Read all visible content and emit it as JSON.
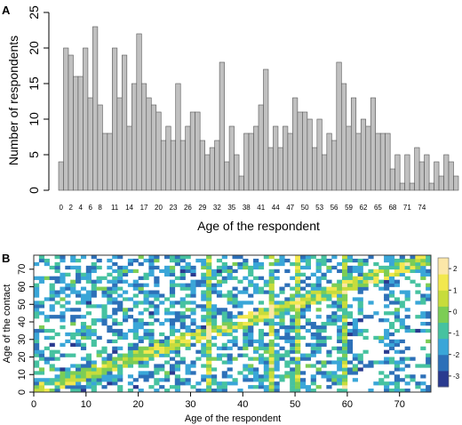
{
  "chart_data": [
    {
      "type": "bar",
      "panel_label": "A",
      "xlabel": "Age of the respondent",
      "ylabel": "Number of respondents",
      "x_start": 0,
      "values": [
        4,
        20,
        19,
        16,
        16,
        20,
        13,
        23,
        12,
        8,
        8,
        20,
        13,
        19,
        9,
        15,
        22,
        15,
        13,
        12,
        11,
        7,
        9,
        7,
        15,
        7,
        9,
        11,
        11,
        7,
        5,
        6,
        7,
        18,
        4,
        9,
        5,
        2,
        8,
        8,
        9,
        12,
        17,
        6,
        9,
        6,
        9,
        8,
        13,
        11,
        11,
        10,
        6,
        10,
        5,
        8,
        7,
        18,
        15,
        9,
        13,
        8,
        10,
        9,
        13,
        8,
        8,
        8,
        3,
        5,
        1,
        5,
        1,
        6,
        4,
        5,
        1,
        4,
        2,
        5,
        4,
        2
      ],
      "ylim": [
        0,
        25
      ],
      "yticks": [
        0,
        5,
        10,
        15,
        20,
        25
      ],
      "xtick_labels": [
        "0",
        "2",
        "4",
        "6",
        "8",
        "11",
        "14",
        "17",
        "20",
        "23",
        "26",
        "29",
        "32",
        "35",
        "38",
        "41",
        "44",
        "47",
        "50",
        "53",
        "56",
        "59",
        "62",
        "65",
        "68",
        "71",
        "74"
      ],
      "xtick_positions": [
        0,
        2,
        4,
        6,
        8,
        11,
        14,
        17,
        20,
        23,
        26,
        29,
        32,
        35,
        38,
        41,
        44,
        47,
        50,
        53,
        56,
        59,
        62,
        65,
        68,
        71,
        74
      ],
      "bar_color": "#c0c0c0",
      "edge_color": "#555555"
    },
    {
      "type": "heatmap",
      "panel_label": "B",
      "xlabel": "Age of the respondent",
      "ylabel": "Age of the contact",
      "xlim": [
        0,
        76
      ],
      "ylim": [
        0,
        78
      ],
      "xticks": [
        0,
        10,
        20,
        30,
        40,
        50,
        60,
        70
      ],
      "yticks": [
        0,
        10,
        20,
        30,
        40,
        50,
        60,
        70
      ],
      "color_scale": {
        "min": -3.5,
        "max": 2.5,
        "ticks": [
          2,
          1,
          0,
          -1,
          -2,
          -3
        ],
        "colors": [
          "#2a3a8f",
          "#2d70b8",
          "#3aa6d8",
          "#46c2a0",
          "#7ccd55",
          "#c7dc3c",
          "#f2e84e",
          "#fbe7a8"
        ]
      },
      "description_values": {
        "diagonal_band_slope": 1,
        "strong_columns": [
          33,
          45,
          50,
          59
        ],
        "sparse_columns": [
          63,
          64,
          65,
          66,
          72,
          73
        ]
      }
    }
  ]
}
